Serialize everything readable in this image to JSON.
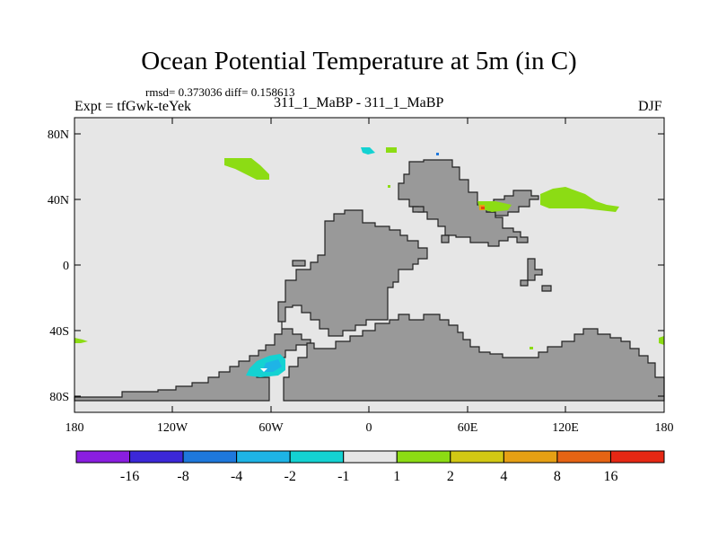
{
  "title": "Ocean Potential Temperature at 5m (in C)",
  "stats": "rmsd= 0.373036 diff= 0.158613",
  "experiment": "Expt = tfGwk-teYek",
  "subtitle": "311_1_MaBP - 311_1_MaBP",
  "season": "DJF",
  "map": {
    "xaxis_labels": [
      "180",
      "120W",
      "60W",
      "0",
      "60E",
      "120E",
      "180"
    ],
    "yaxis_labels": [
      "80N",
      "40N",
      "0",
      "40S",
      "80S"
    ],
    "ocean_color": "#e6e6e6",
    "land_color": "#999999"
  },
  "colorbar": {
    "colors": [
      "#8a1ee0",
      "#3c28d8",
      "#1e78dc",
      "#1eb4e6",
      "#14d2d2",
      "#e6e6e6",
      "#8cdc14",
      "#d2c814",
      "#e6a014",
      "#e66414",
      "#e62814"
    ],
    "labels": [
      "-16",
      "-8",
      "-4",
      "-2",
      "-1",
      "1",
      "2",
      "4",
      "8",
      "16"
    ]
  }
}
